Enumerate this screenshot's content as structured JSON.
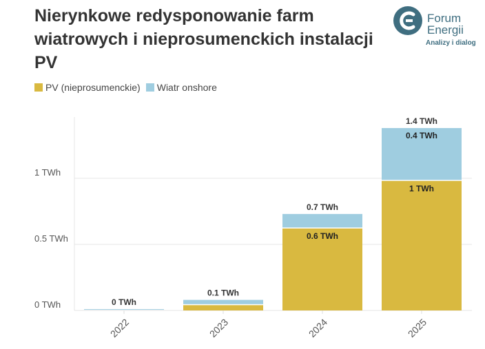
{
  "chart_data": {
    "type": "bar",
    "stacked": true,
    "title": "Nierynkowe redysponowanie farm wiatrowych i nieprosumenckich instalacji PV",
    "categories": [
      "2022",
      "2023",
      "2024",
      "2025"
    ],
    "series": [
      {
        "name": "PV (nieprosumenckie)",
        "color": "#d9b940",
        "values": [
          0,
          0.04,
          0.62,
          0.98
        ],
        "labels": [
          "",
          "",
          "0.6 TWh",
          "1 TWh"
        ]
      },
      {
        "name": "Wiatr onshore",
        "color": "#9fcde0",
        "values": [
          0.01,
          0.04,
          0.11,
          0.4
        ],
        "labels": [
          "",
          "",
          "",
          "0.4 TWh"
        ]
      }
    ],
    "total_labels": [
      "0 TWh",
      "0.1 TWh",
      "0.7 TWh",
      "1.4 TWh"
    ],
    "yticks": [
      {
        "v": 0,
        "label": "0 TWh"
      },
      {
        "v": 0.5,
        "label": "0.5 TWh"
      },
      {
        "v": 1,
        "label": "1 TWh"
      }
    ],
    "ylim": [
      0,
      1.47
    ],
    "legend": "top-left",
    "grid": true
  },
  "logo": {
    "line1": "Forum",
    "line2": "Energii",
    "tagline": "Analizy i dialog"
  }
}
